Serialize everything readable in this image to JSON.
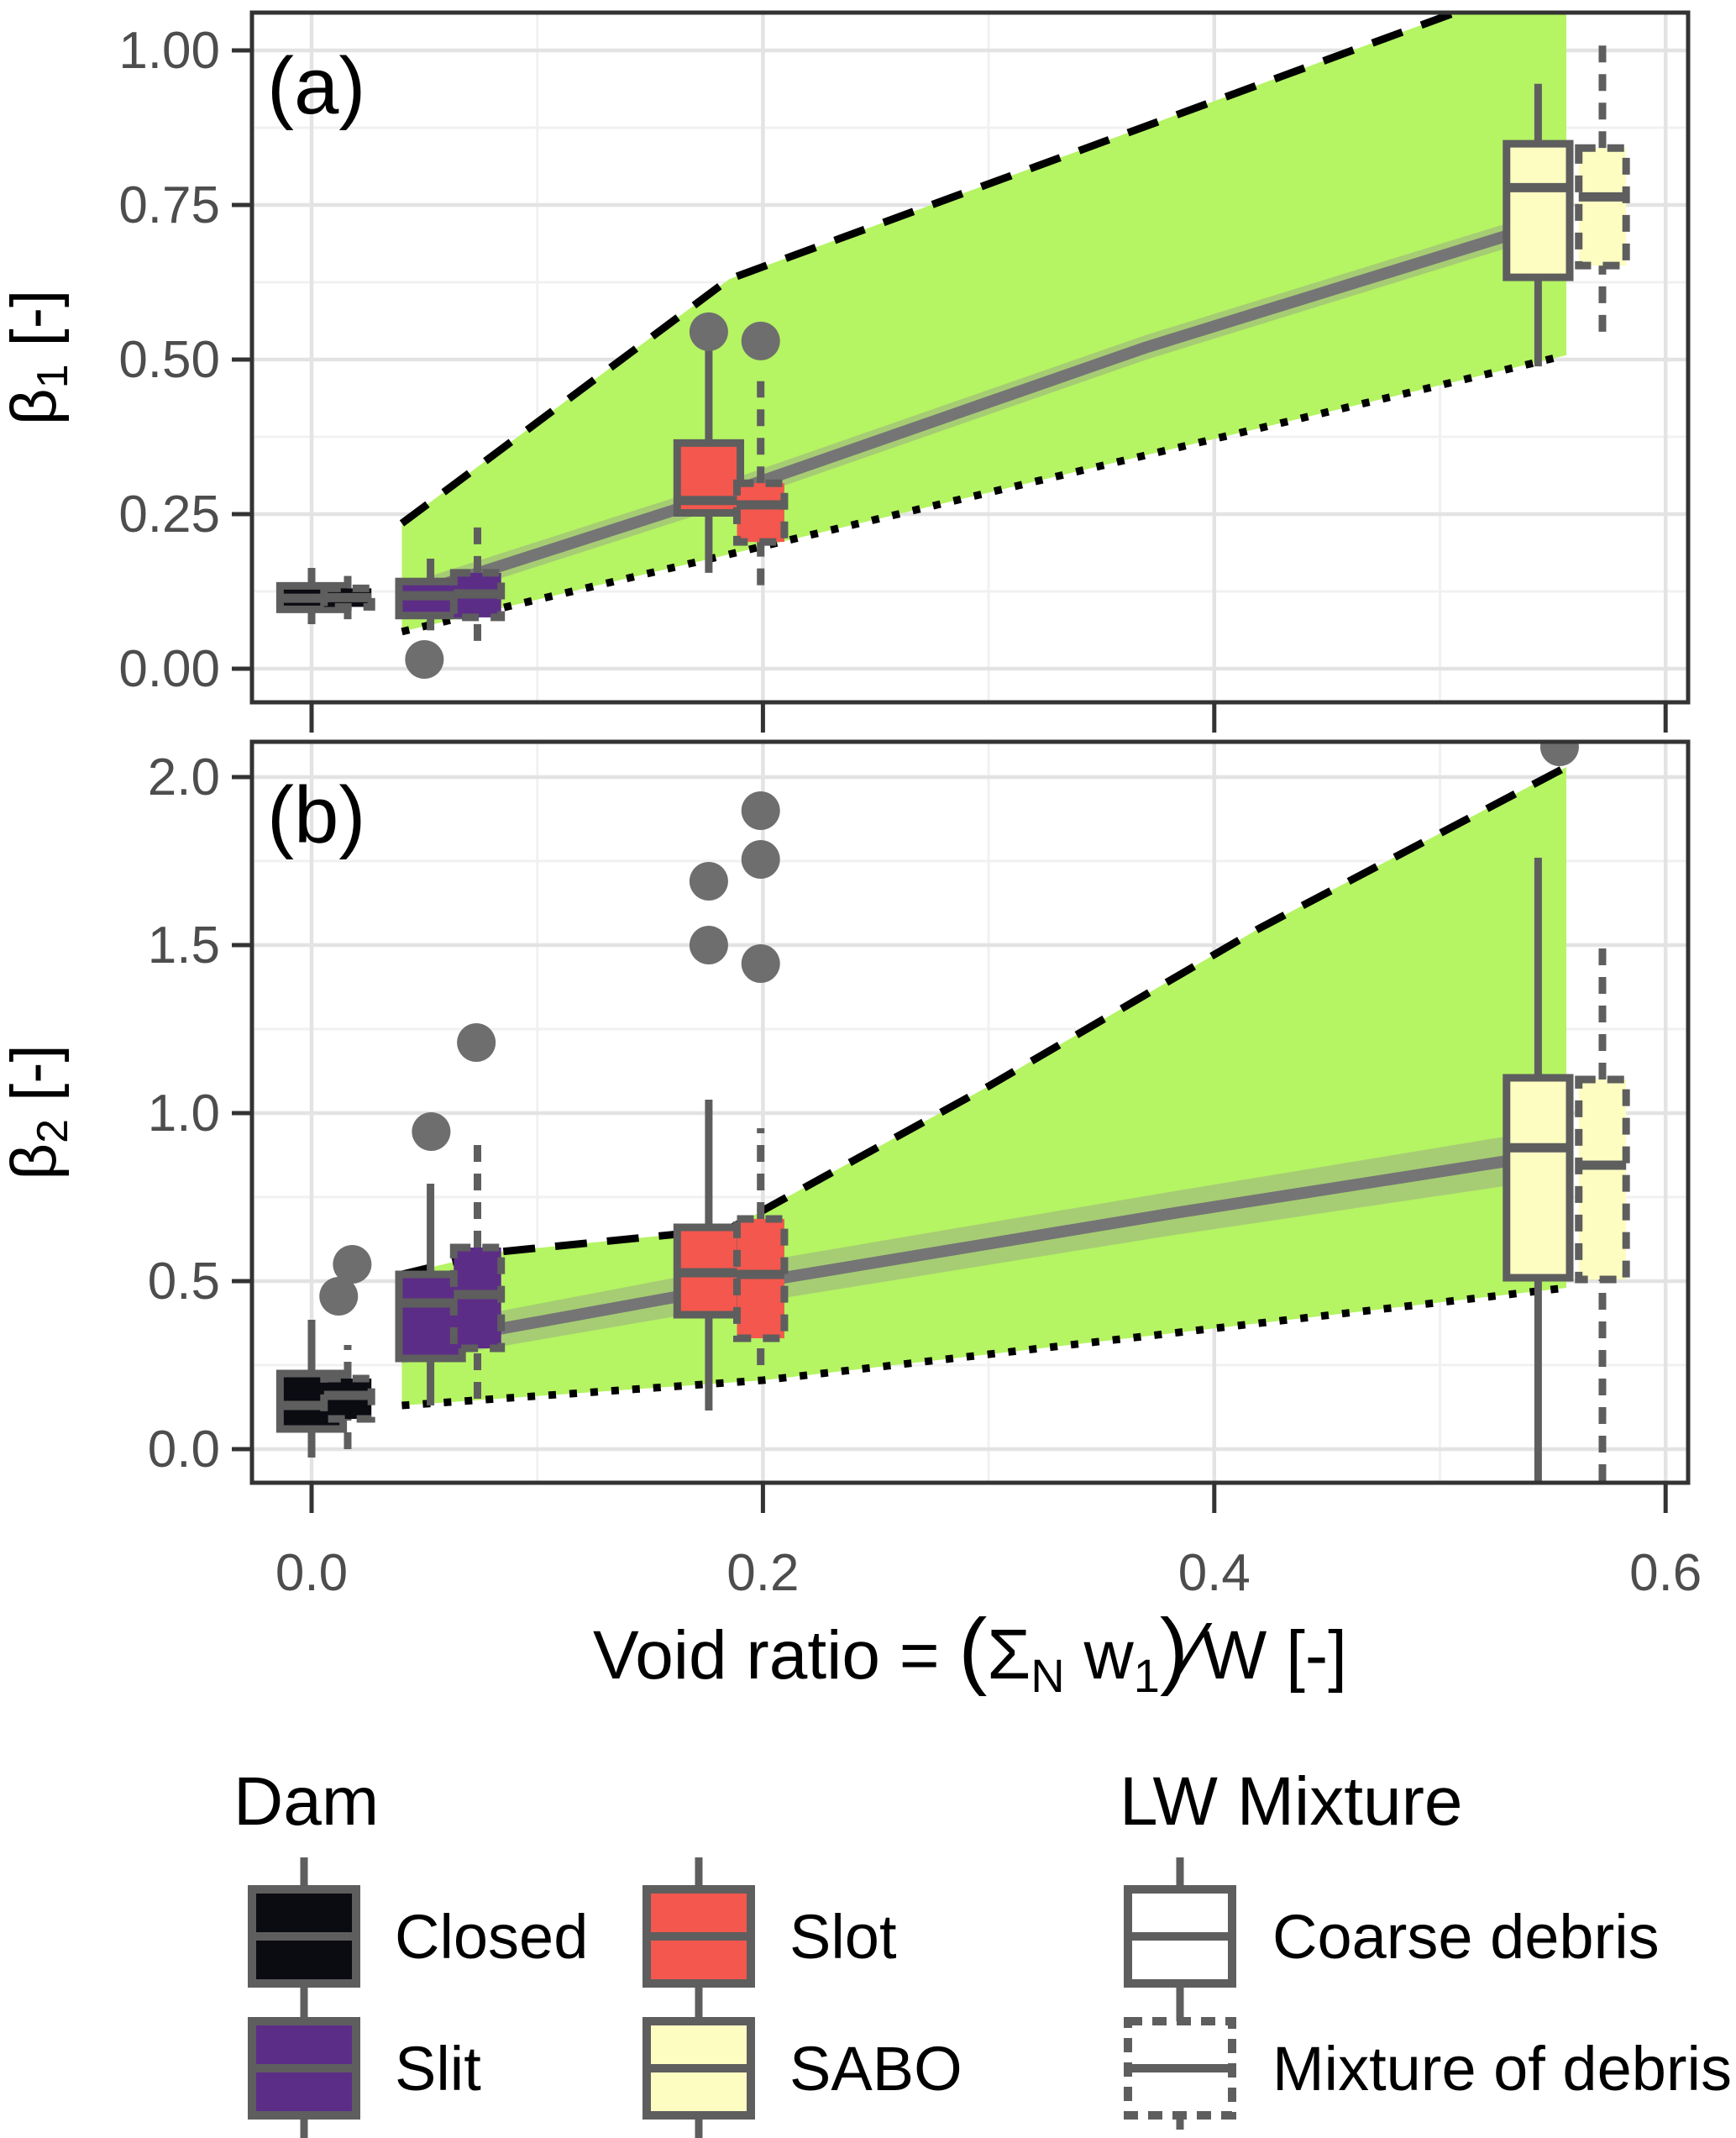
{
  "colors": {
    "background": "#FFFFFF",
    "panel_border": "#333333",
    "grid_major": "#E3E3E3",
    "grid_minor": "#F1F1F1",
    "ribbon_green": "#B5F463",
    "boundary_line": "#000000",
    "trend_gray": "#757575",
    "ci_band": "#8F8F8F",
    "box_stroke": "#5E5E5E",
    "outlier": "#6E6E6E",
    "tick_label": "#4D4D4D",
    "text": "#000000",
    "dam_closed": "#0B0B12",
    "dam_slit": "#5C2D87",
    "dam_slot": "#F4574D",
    "dam_sabo": "#FDFDC2",
    "legend_white": "#FFFFFF"
  },
  "chart_data": {
    "type": "boxplot",
    "grid": "on",
    "x_axis": {
      "title": {
        "pre": "Void ratio = ",
        "open": "(",
        "sigma": "Σ",
        "sigma_sub": "N",
        "w": " w",
        "w_sub": "1",
        "close": ")",
        "slash": "∕",
        "suffix": "W [-]"
      },
      "ticks": [
        {
          "v": 0.0,
          "t": "0.0"
        },
        {
          "v": 0.2,
          "t": "0.2"
        },
        {
          "v": 0.4,
          "t": "0.4"
        },
        {
          "v": 0.6,
          "t": "0.6"
        }
      ],
      "minor": [
        0.1,
        0.3,
        0.5
      ],
      "range": [
        -0.026,
        0.61
      ]
    },
    "panels": [
      {
        "id": "a",
        "label": "(a)",
        "y_label": {
          "sym": "β",
          "sub": "1",
          "unit": " [-]"
        },
        "y_ticks": [
          {
            "v": 0.0,
            "t": "0.00"
          },
          {
            "v": 0.25,
            "t": "0.25"
          },
          {
            "v": 0.5,
            "t": "0.50"
          },
          {
            "v": 0.75,
            "t": "0.75"
          },
          {
            "v": 1.0,
            "t": "1.00"
          }
        ],
        "y_minor": [
          0.125,
          0.375,
          0.625,
          0.875
        ],
        "ylim": [
          -0.05,
          1.06
        ],
        "ribbon": {
          "upper": [
            [
              0.04,
              0.235
            ],
            [
              0.185,
              0.63
            ],
            [
              0.556,
              1.127
            ]
          ],
          "lower": [
            [
              0.04,
              0.06
            ],
            [
              0.185,
              0.185
            ],
            [
              0.556,
              0.507
            ]
          ]
        },
        "ci": {
          "upper": [
            [
              0.04,
              0.135
            ],
            [
              0.185,
              0.305
            ],
            [
              0.37,
              0.54
            ],
            [
              0.556,
              0.75
            ]
          ],
          "lower": [
            [
              0.04,
              0.095
            ],
            [
              0.185,
              0.265
            ],
            [
              0.37,
              0.5
            ],
            [
              0.556,
              0.71
            ]
          ]
        },
        "trend": [
          [
            0.04,
            0.115
          ],
          [
            0.185,
            0.285
          ],
          [
            0.37,
            0.52
          ],
          [
            0.556,
            0.73
          ]
        ],
        "boxes": [
          {
            "dam": "closed",
            "style": "solid",
            "x": 0.0,
            "low": 0.072,
            "q1": 0.096,
            "med": 0.114,
            "q3": 0.134,
            "high": 0.163
          },
          {
            "dam": "closed",
            "style": "dashed",
            "x": 0.016,
            "low": 0.08,
            "q1": 0.1,
            "med": 0.115,
            "q3": 0.13,
            "high": 0.15
          },
          {
            "dam": "slit",
            "style": "solid",
            "x": 0.0527,
            "low": 0.062,
            "q1": 0.086,
            "med": 0.118,
            "q3": 0.141,
            "high": 0.178
          },
          {
            "dam": "slit",
            "style": "dashed",
            "x": 0.0735,
            "low": 0.045,
            "q1": 0.083,
            "med": 0.121,
            "q3": 0.155,
            "high": 0.23
          },
          {
            "dam": "slot",
            "style": "solid",
            "x": 0.176,
            "low": 0.155,
            "q1": 0.252,
            "med": 0.272,
            "q3": 0.365,
            "high": 0.515
          },
          {
            "dam": "slot",
            "style": "dashed",
            "x": 0.199,
            "low": 0.135,
            "q1": 0.205,
            "med": 0.265,
            "q3": 0.3,
            "high": 0.465
          },
          {
            "dam": "sabo",
            "style": "solid",
            "x": 0.5435,
            "low": 0.489,
            "q1": 0.633,
            "med": 0.778,
            "q3": 0.849,
            "high": 0.946
          },
          {
            "dam": "sabo",
            "style": "dashed",
            "x": 0.572,
            "low": 0.545,
            "q1": 0.652,
            "med": 0.763,
            "q3": 0.842,
            "high": 1.023
          }
        ],
        "outliers": [
          [
            0.05,
            0.015
          ],
          [
            0.176,
            0.545
          ],
          [
            0.199,
            0.53
          ]
        ]
      },
      {
        "id": "b",
        "label": "(b)",
        "y_label": {
          "sym": "β",
          "sub": "2",
          "unit": " [-]"
        },
        "y_ticks": [
          {
            "v": 0.0,
            "t": "0.0"
          },
          {
            "v": 0.5,
            "t": "0.5"
          },
          {
            "v": 1.0,
            "t": "1.0"
          },
          {
            "v": 1.5,
            "t": "1.5"
          },
          {
            "v": 2.0,
            "t": "2.0"
          }
        ],
        "y_minor": [
          0.25,
          0.75,
          1.25,
          1.75
        ],
        "ylim": [
          -0.1,
          2.105
        ],
        "ribbon": {
          "upper": [
            [
              0.04,
              0.52
            ],
            [
              0.08,
              0.585
            ],
            [
              0.185,
              0.655
            ],
            [
              0.3,
              1.08
            ],
            [
              0.42,
              1.55
            ],
            [
              0.556,
              2.03
            ]
          ],
          "lower": [
            [
              0.04,
              0.13
            ],
            [
              0.2,
              0.205
            ],
            [
              0.556,
              0.48
            ]
          ]
        },
        "ci": {
          "upper": [
            [
              0.04,
              0.355
            ],
            [
              0.2,
              0.56
            ],
            [
              0.38,
              0.765
            ],
            [
              0.556,
              0.96
            ]
          ],
          "lower": [
            [
              0.04,
              0.255
            ],
            [
              0.2,
              0.44
            ],
            [
              0.38,
              0.635
            ],
            [
              0.556,
              0.81
            ]
          ]
        },
        "trend": [
          [
            0.04,
            0.305
          ],
          [
            0.2,
            0.5
          ],
          [
            0.38,
            0.7
          ],
          [
            0.556,
            0.885
          ]
        ],
        "boxes": [
          {
            "dam": "closed",
            "style": "solid",
            "x": 0.0,
            "low": -0.025,
            "q1": 0.06,
            "med": 0.13,
            "q3": 0.225,
            "high": 0.385
          },
          {
            "dam": "closed",
            "style": "dashed",
            "x": 0.016,
            "low": 0.0,
            "q1": 0.09,
            "med": 0.16,
            "q3": 0.21,
            "high": 0.31
          },
          {
            "dam": "slit",
            "style": "solid",
            "x": 0.0527,
            "low": 0.13,
            "q1": 0.27,
            "med": 0.435,
            "q3": 0.52,
            "high": 0.79
          },
          {
            "dam": "slit",
            "style": "dashed",
            "x": 0.0735,
            "low": 0.15,
            "q1": 0.3,
            "med": 0.46,
            "q3": 0.6,
            "high": 0.915
          },
          {
            "dam": "slot",
            "style": "solid",
            "x": 0.176,
            "low": 0.115,
            "q1": 0.4,
            "med": 0.525,
            "q3": 0.66,
            "high": 1.04
          },
          {
            "dam": "slot",
            "style": "dashed",
            "x": 0.199,
            "low": 0.25,
            "q1": 0.33,
            "med": 0.52,
            "q3": 0.685,
            "high": 0.955
          },
          {
            "dam": "sabo",
            "style": "solid",
            "x": 0.5435,
            "low": -0.095,
            "q1": 0.51,
            "med": 0.897,
            "q3": 1.105,
            "high": 1.76
          },
          {
            "dam": "sabo",
            "style": "dashed",
            "x": 0.572,
            "low": -0.095,
            "q1": 0.505,
            "med": 0.845,
            "q3": 1.1,
            "high": 1.52
          }
        ],
        "outliers": [
          [
            0.018,
            0.55
          ],
          [
            0.012,
            0.455
          ],
          [
            0.053,
            0.945
          ],
          [
            0.073,
            1.21
          ],
          [
            0.176,
            1.69
          ],
          [
            0.176,
            1.5
          ],
          [
            0.199,
            1.9
          ],
          [
            0.199,
            1.755
          ],
          [
            0.199,
            1.445
          ],
          [
            0.553,
            2.09
          ]
        ]
      }
    ]
  },
  "legend": {
    "dam": {
      "title": "Dam",
      "items": [
        {
          "label": "Closed",
          "fill": "dam_closed"
        },
        {
          "label": "Slit",
          "fill": "dam_slit"
        },
        {
          "label": "Slot",
          "fill": "dam_slot"
        },
        {
          "label": "SABO",
          "fill": "dam_sabo"
        }
      ]
    },
    "lw": {
      "title": "LW Mixture",
      "items": [
        {
          "label": "Coarse debris",
          "style": "solid"
        },
        {
          "label": "Mixture of debris",
          "style": "dashed"
        }
      ]
    }
  }
}
